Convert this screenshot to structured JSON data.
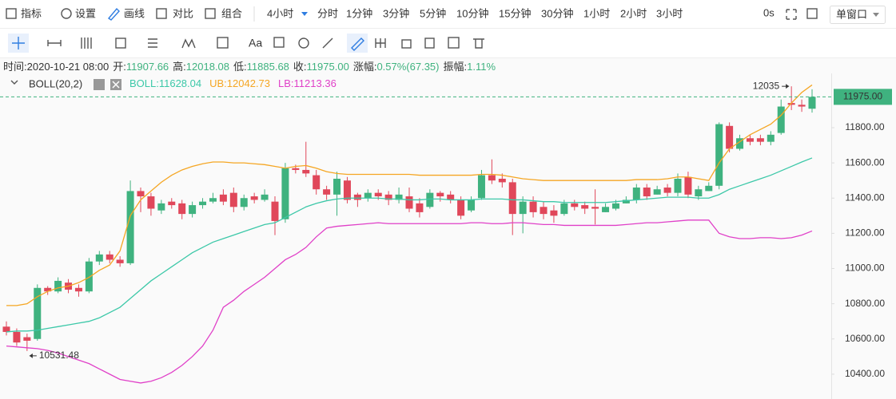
{
  "toolbar": {
    "main": [
      "指标",
      "设置",
      "画线",
      "对比",
      "组合"
    ],
    "periods": [
      "4小时",
      "分时",
      "1分钟",
      "3分钟",
      "5分钟",
      "10分钟",
      "15分钟",
      "30分钟",
      "1小时",
      "2小时",
      "3小时"
    ],
    "timer": "0s",
    "window": "单窗口",
    "font_tool": "Aa"
  },
  "info_bar": [
    {
      "label": "时间:",
      "value": "2020-10-21 08:00"
    },
    {
      "label": "开:",
      "value": "11907.66"
    },
    {
      "label": "高:",
      "value": "12018.08"
    },
    {
      "label": "低:",
      "value": "11885.68"
    },
    {
      "label": "收:",
      "value": "11975.00"
    },
    {
      "label": "涨幅:",
      "value": "0.57%(67.35)"
    },
    {
      "label": "振幅:",
      "value": "1.11%"
    }
  ],
  "chart_data": {
    "type": "candlestick",
    "indicator": "BOLL(20,2)",
    "ylim": [
      10259,
      12081
    ],
    "yticks": [
      {
        "value": 11800,
        "label": "11800.00"
      },
      {
        "value": 11600,
        "label": "11600.00"
      },
      {
        "value": 11400,
        "label": "11400.00"
      },
      {
        "value": 11200,
        "label": "11200.00"
      },
      {
        "value": 11000,
        "label": "11000.00"
      },
      {
        "value": 10800,
        "label": "10800.00"
      },
      {
        "value": 10600,
        "label": "10600.00"
      },
      {
        "value": 10400,
        "label": "10400.00"
      }
    ],
    "grid": false,
    "current_price": {
      "value": 11975,
      "label": "11975.00",
      "color": "#3fb27f"
    },
    "max_label": {
      "value": 12035,
      "label": "12035"
    },
    "min_label": {
      "value": 10531.48,
      "label": "10531.48"
    },
    "candles": {
      "up_color": "#3fb27f",
      "down_color": "#e0475a",
      "open": [
        10670,
        10640,
        10610,
        10600,
        10890,
        10870,
        10920,
        10890,
        10870,
        11040,
        11080,
        11050,
        11030,
        11440,
        11410,
        11330,
        11380,
        11370,
        11310,
        11360,
        11380,
        11420,
        11430,
        11350,
        11410,
        11390,
        11380,
        11280,
        11570,
        11560,
        11530,
        11450,
        11420,
        11500,
        11420,
        11400,
        11430,
        11420,
        11390,
        11410,
        11370,
        11350,
        11430,
        11420,
        11390,
        11330,
        11400,
        11530,
        11510,
        11490,
        11310,
        11380,
        11350,
        11330,
        11310,
        11370,
        11360,
        11350,
        11320,
        11340,
        11370,
        11390,
        11460,
        11420,
        11460,
        11430,
        11520,
        11410,
        11440,
        11470,
        11810,
        11680,
        11740,
        11740,
        11720,
        11770,
        11940,
        11930,
        11907.66
      ],
      "high": [
        10700,
        10660,
        10630,
        10910,
        10900,
        10950,
        10940,
        10910,
        11060,
        11100,
        11100,
        11070,
        11500,
        11460,
        11430,
        11390,
        11400,
        11390,
        11380,
        11400,
        11430,
        11450,
        11460,
        11420,
        11430,
        11450,
        11410,
        11600,
        11590,
        11720,
        11560,
        11470,
        11550,
        11520,
        11430,
        11450,
        11450,
        11440,
        11460,
        11460,
        11400,
        11450,
        11440,
        11440,
        11410,
        11410,
        11560,
        11620,
        11540,
        11510,
        11410,
        11410,
        11380,
        11360,
        11390,
        11390,
        11380,
        11450,
        11370,
        11390,
        11410,
        11480,
        11480,
        11470,
        11480,
        11540,
        11550,
        11470,
        11490,
        11830,
        11830,
        11760,
        11760,
        11760,
        11780,
        11960,
        12035,
        11960,
        12018.08
      ],
      "low": [
        10620,
        10560,
        10531.48,
        10590,
        10850,
        10860,
        10860,
        10840,
        10860,
        11020,
        11030,
        11010,
        11020,
        11320,
        11300,
        11310,
        11340,
        11280,
        11290,
        11340,
        11370,
        11360,
        11320,
        11330,
        11370,
        11380,
        11190,
        11260,
        11540,
        11520,
        11420,
        11390,
        11300,
        11370,
        11350,
        11380,
        11390,
        11360,
        11370,
        11320,
        11290,
        11340,
        11380,
        11370,
        11280,
        11320,
        11390,
        11480,
        11460,
        11190,
        11200,
        11290,
        11280,
        11260,
        11300,
        11330,
        11310,
        11250,
        11320,
        11330,
        11370,
        11370,
        11390,
        11420,
        11410,
        11410,
        11400,
        11390,
        11440,
        11450,
        11660,
        11670,
        11700,
        11700,
        11700,
        11760,
        11900,
        11890,
        11885.68
      ],
      "close": [
        10640,
        10580,
        10590,
        10890,
        10870,
        10930,
        10880,
        10870,
        11040,
        11080,
        11050,
        11030,
        11440,
        11410,
        11340,
        11370,
        11360,
        11310,
        11360,
        11380,
        11400,
        11380,
        11350,
        11400,
        11390,
        11420,
        11270,
        11570,
        11560,
        11540,
        11450,
        11420,
        11510,
        11390,
        11390,
        11430,
        11410,
        11390,
        11420,
        11340,
        11320,
        11430,
        11410,
        11390,
        11300,
        11390,
        11530,
        11500,
        11490,
        11310,
        11380,
        11320,
        11310,
        11300,
        11370,
        11350,
        11340,
        11340,
        11350,
        11370,
        11390,
        11460,
        11410,
        11450,
        11430,
        11510,
        11420,
        11450,
        11470,
        11820,
        11680,
        11740,
        11720,
        11720,
        11760,
        11920,
        11930,
        11920,
        11975
      ]
    },
    "series": [
      {
        "name": "BOLL:11628.04",
        "color": "#3cc8a8",
        "values": [
          10640,
          10645,
          10645,
          10650,
          10660,
          10670,
          10680,
          10690,
          10700,
          10720,
          10750,
          10780,
          10830,
          10880,
          10930,
          10970,
          11010,
          11050,
          11090,
          11120,
          11150,
          11170,
          11190,
          11210,
          11230,
          11250,
          11260,
          11290,
          11320,
          11350,
          11370,
          11385,
          11395,
          11400,
          11400,
          11400,
          11400,
          11395,
          11395,
          11390,
          11390,
          11395,
          11395,
          11390,
          11390,
          11390,
          11395,
          11395,
          11395,
          11390,
          11390,
          11385,
          11380,
          11380,
          11375,
          11375,
          11375,
          11375,
          11375,
          11380,
          11385,
          11390,
          11395,
          11400,
          11405,
          11405,
          11405,
          11400,
          11400,
          11420,
          11450,
          11470,
          11490,
          11510,
          11530,
          11555,
          11580,
          11605,
          11628.04
        ]
      },
      {
        "name": "UB:12042.73",
        "color": "#f5a623",
        "values": [
          10790,
          10790,
          10800,
          10840,
          10870,
          10890,
          10900,
          10920,
          10950,
          10990,
          11020,
          11100,
          11300,
          11390,
          11440,
          11490,
          11530,
          11560,
          11580,
          11595,
          11605,
          11605,
          11600,
          11600,
          11595,
          11590,
          11580,
          11570,
          11580,
          11585,
          11570,
          11550,
          11540,
          11535,
          11535,
          11535,
          11535,
          11535,
          11535,
          11535,
          11530,
          11530,
          11530,
          11530,
          11530,
          11530,
          11535,
          11535,
          11530,
          11520,
          11510,
          11505,
          11500,
          11500,
          11500,
          11500,
          11500,
          11500,
          11500,
          11500,
          11500,
          11505,
          11505,
          11505,
          11510,
          11520,
          11520,
          11510,
          11500,
          11600,
          11680,
          11720,
          11760,
          11790,
          11820,
          11870,
          11940,
          12000,
          12042.73
        ]
      },
      {
        "name": "LB:11213.36",
        "color": "#e040c8",
        "values": [
          10560,
          10555,
          10550,
          10545,
          10535,
          10520,
          10500,
          10480,
          10460,
          10430,
          10400,
          10370,
          10360,
          10350,
          10360,
          10380,
          10410,
          10450,
          10500,
          10560,
          10650,
          10780,
          10820,
          10870,
          10910,
          10950,
          11000,
          11050,
          11080,
          11120,
          11180,
          11230,
          11240,
          11245,
          11250,
          11255,
          11260,
          11255,
          11255,
          11255,
          11255,
          11255,
          11255,
          11255,
          11255,
          11260,
          11260,
          11255,
          11255,
          11260,
          11260,
          11255,
          11250,
          11250,
          11245,
          11245,
          11245,
          11245,
          11245,
          11245,
          11250,
          11255,
          11260,
          11260,
          11265,
          11270,
          11275,
          11275,
          11275,
          11200,
          11180,
          11170,
          11170,
          11175,
          11175,
          11170,
          11175,
          11190,
          11213.36
        ]
      }
    ]
  }
}
